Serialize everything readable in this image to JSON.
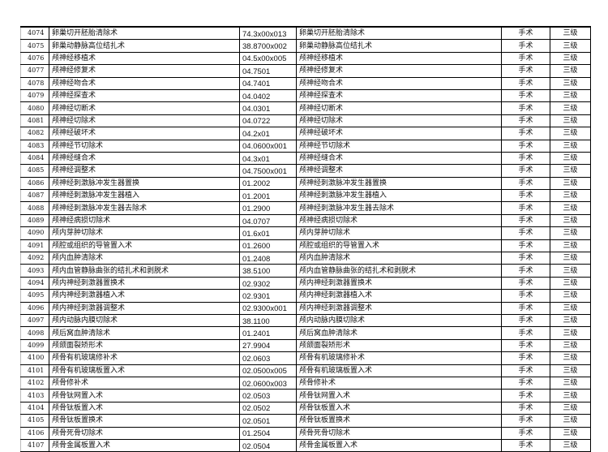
{
  "table": {
    "rows": [
      [
        "4074",
        "卵巢切开胚胎清除术",
        "74.3x00x013",
        "卵巢切开胚胎清除术",
        "手术",
        "三级"
      ],
      [
        "4075",
        "卵巢动静脉高位结扎术",
        "38.8700x002",
        "卵巢动静脉高位结扎术",
        "手术",
        "三级"
      ],
      [
        "4076",
        "颅神经移植术",
        "04.5x00x005",
        "颅神经移植术",
        "手术",
        "三级"
      ],
      [
        "4077",
        "颅神经修复术",
        "04.7501",
        "颅神经修复术",
        "手术",
        "三级"
      ],
      [
        "4078",
        "颅神经吻合术",
        "04.7401",
        "颅神经吻合术",
        "手术",
        "三级"
      ],
      [
        "4079",
        "颅神经探查术",
        "04.0402",
        "颅神经探查术",
        "手术",
        "三级"
      ],
      [
        "4080",
        "颅神经切断术",
        "04.0301",
        "颅神经切断术",
        "手术",
        "三级"
      ],
      [
        "4081",
        "颅神经切除术",
        "04.0722",
        "颅神经切除术",
        "手术",
        "三级"
      ],
      [
        "4082",
        "颅神经破坏术",
        "04.2x01",
        "颅神经破坏术",
        "手术",
        "三级"
      ],
      [
        "4083",
        "颅神经节切除术",
        "04.0600x001",
        "颅神经节切除术",
        "手术",
        "三级"
      ],
      [
        "4084",
        "颅神经缝合术",
        "04.3x01",
        "颅神经缝合术",
        "手术",
        "三级"
      ],
      [
        "4085",
        "颅神经调整术",
        "04.7500x001",
        "颅神经调整术",
        "手术",
        "三级"
      ],
      [
        "4086",
        "颅神经刺激脉冲发生器置换",
        "01.2002",
        "颅神经刺激脉冲发生器置换",
        "手术",
        "三级"
      ],
      [
        "4087",
        "颅神经刺激脉冲发生器植入",
        "01.2001",
        "颅神经刺激脉冲发生器植入",
        "手术",
        "三级"
      ],
      [
        "4088",
        "颅神经刺激脉冲发生器去除术",
        "01.2900",
        "颅神经刺激脉冲发生器去除术",
        "手术",
        "三级"
      ],
      [
        "4089",
        "颅神经病损切除术",
        "04.0707",
        "颅神经病损切除术",
        "手术",
        "三级"
      ],
      [
        "4090",
        "颅内芽肿切除术",
        "01.6x01",
        "颅内芽肿切除术",
        "手术",
        "三级"
      ],
      [
        "4091",
        "颅腔或组织的导管置入术",
        "01.2600",
        "颅腔或组织的导管置入术",
        "手术",
        "三级"
      ],
      [
        "4092",
        "颅内血肿清除术",
        "01.2408",
        "颅内血肿清除术",
        "手术",
        "三级"
      ],
      [
        "4093",
        "颅内血管静脉曲张的结扎术和剥脱术",
        "38.5100",
        "颅内血管静脉曲张的结扎术和剥脱术",
        "手术",
        "三级"
      ],
      [
        "4094",
        "颅内神经刺激器置换术",
        "02.9302",
        "颅内神经刺激器置换术",
        "手术",
        "三级"
      ],
      [
        "4095",
        "颅内神经刺激器植入术",
        "02.9301",
        "颅内神经刺激器植入术",
        "手术",
        "三级"
      ],
      [
        "4096",
        "颅内神经刺激器调整术",
        "02.9300x001",
        "颅内神经刺激器调整术",
        "手术",
        "三级"
      ],
      [
        "4097",
        "颅内动脉内膜切除术",
        "38.1100",
        "颅内动脉内膜切除术",
        "手术",
        "三级"
      ],
      [
        "4098",
        "颅后窝血肿清除术",
        "01.2401",
        "颅后窝血肿清除术",
        "手术",
        "三级"
      ],
      [
        "4099",
        "颅颌面裂矫形术",
        "27.9904",
        "颅颌面裂矫形术",
        "手术",
        "三级"
      ],
      [
        "4100",
        "颅骨有机玻璃修补术",
        "02.0603",
        "颅骨有机玻璃修补术",
        "手术",
        "三级"
      ],
      [
        "4101",
        "颅骨有机玻璃板置入术",
        "02.0500x005",
        "颅骨有机玻璃板置入术",
        "手术",
        "三级"
      ],
      [
        "4102",
        "颅骨修补术",
        "02.0600x003",
        "颅骨修补术",
        "手术",
        "三级"
      ],
      [
        "4103",
        "颅骨钛网置入术",
        "02.0503",
        "颅骨钛网置入术",
        "手术",
        "三级"
      ],
      [
        "4104",
        "颅骨钛板置入术",
        "02.0502",
        "颅骨钛板置入术",
        "手术",
        "三级"
      ],
      [
        "4105",
        "颅骨钛板置换术",
        "02.0501",
        "颅骨钛板置换术",
        "手术",
        "三级"
      ],
      [
        "4106",
        "颅骨死骨切除术",
        "01.2504",
        "颅骨死骨切除术",
        "手术",
        "三级"
      ],
      [
        "4107",
        "颅骨金属板置入术",
        "02.0504",
        "颅骨金属板置入术",
        "手术",
        "三级"
      ]
    ]
  }
}
